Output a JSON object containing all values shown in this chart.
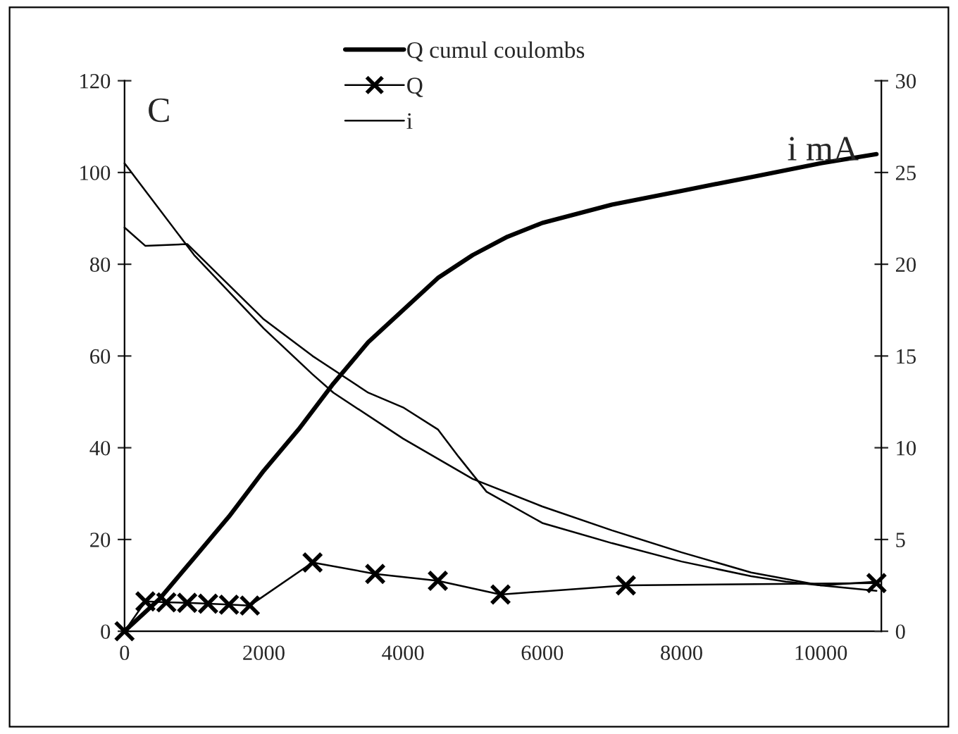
{
  "chart_data": {
    "type": "line",
    "ylabel": "C",
    "y2label": "i mA",
    "xlim": [
      0,
      10870
    ],
    "xticks": [
      0,
      2000,
      4000,
      6000,
      8000,
      10000
    ],
    "ylim": [
      0,
      120
    ],
    "yticks": [
      0,
      20,
      40,
      60,
      80,
      100,
      120
    ],
    "y2lim": [
      0,
      30
    ],
    "y2ticks": [
      0,
      5,
      10,
      15,
      20,
      25,
      30
    ],
    "legend": "top",
    "grid": false,
    "series": [
      {
        "name": "Q cumul coulombs",
        "color": "#000000",
        "marker": "none",
        "x": [
          0,
          500,
          1000,
          1500,
          2000,
          2500,
          3000,
          3500,
          4000,
          4500,
          5000,
          5500,
          6000,
          7000,
          8000,
          9000,
          10000,
          10800
        ],
        "values": [
          0,
          7,
          16,
          25,
          35,
          44,
          54,
          63,
          70,
          77,
          82,
          86,
          89,
          93,
          96,
          99,
          102,
          104
        ]
      },
      {
        "name": "Q",
        "color": "#000000",
        "marker": "cross",
        "x": [
          0,
          300,
          600,
          900,
          1200,
          1500,
          1800,
          2700,
          3600,
          4500,
          5400,
          7200,
          10800
        ],
        "values": [
          0,
          6.5,
          6.3,
          6.2,
          6,
          5.8,
          5.6,
          15,
          12.5,
          11,
          8,
          10,
          10.5
        ]
      },
      {
        "name": "i",
        "color": "#000000",
        "marker": "none",
        "axis": "y2",
        "x": [
          0,
          1000,
          2000,
          2700,
          3000,
          4000,
          5000,
          6000,
          7000,
          8000,
          9000,
          10000,
          10800
        ],
        "values": [
          25.5,
          20.5,
          16.5,
          14,
          13,
          10.5,
          8.3,
          6.8,
          5.5,
          4.3,
          3.2,
          2.5,
          2.2
        ]
      },
      {
        "color": "#000000",
        "marker": "none",
        "axis": "y2",
        "x": [
          0,
          300,
          900,
          2000,
          2700,
          3500,
          4000,
          4500,
          4800,
          5200,
          6000,
          7000,
          8000,
          9000,
          9500,
          10000,
          10800
        ],
        "values": [
          22,
          21,
          21.1,
          17,
          15,
          13,
          12.2,
          11,
          9.5,
          7.6,
          5.9,
          4.8,
          3.8,
          3,
          2.7,
          2.5,
          2.7
        ]
      }
    ]
  }
}
